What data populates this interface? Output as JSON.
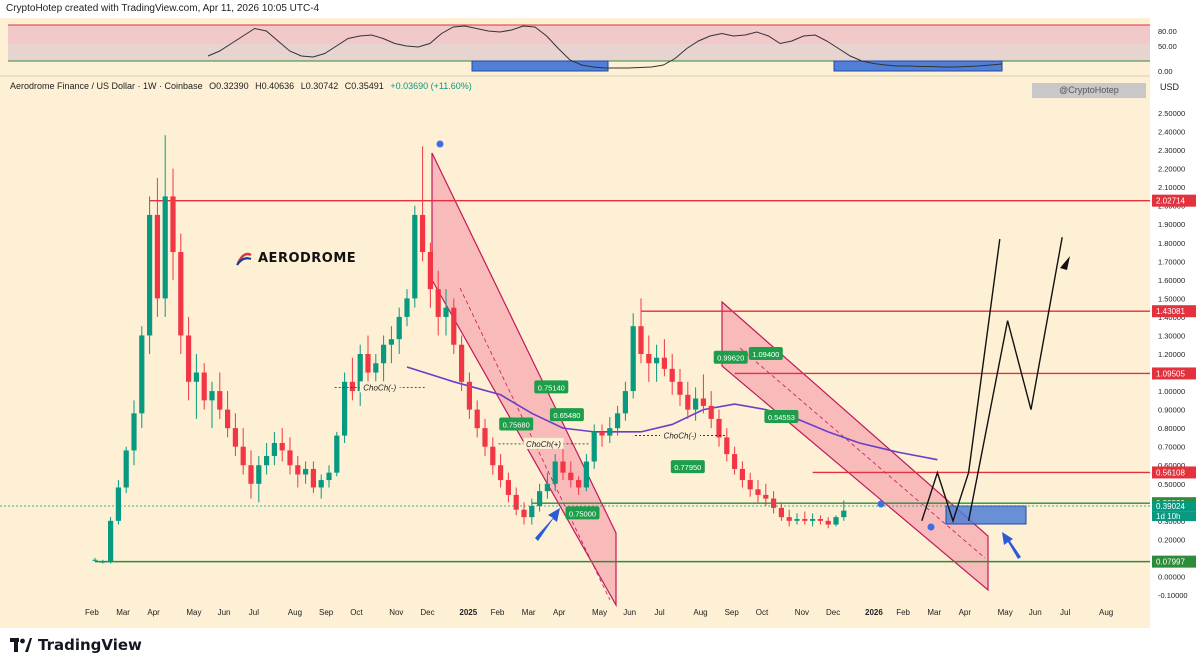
{
  "header": {
    "attribution": "CryptoHotep created with TradingView.com, Apr 11, 2026 10:05 UTC-4"
  },
  "legend": {
    "symbol": "Aerodrome Finance / US Dollar · 1W · Coinbase",
    "open": "O0.32390",
    "high": "H0.40636",
    "low": "L0.30742",
    "close": "C0.35491",
    "change": "+0.03690 (+11.60%)"
  },
  "watermark_tag": "@CryptoHotep",
  "currency": "USD",
  "brand_logo_text": "AERODROME",
  "footer_brand": "TradingView",
  "colors": {
    "up": "#089981",
    "down": "#f23645",
    "channel_fill": "#f7a8b0",
    "background": "#fdf0d5",
    "ma": "#6a3fc8",
    "resistance": "#e3313d",
    "support": "#2e8b3a",
    "zone": "#4f7fd6"
  },
  "chart_data": {
    "type": "candlestick",
    "timeframe": "1W",
    "ylim": [
      -0.15,
      2.6
    ],
    "y_ticks": [
      "2.50000",
      "2.40000",
      "2.30000",
      "2.20000",
      "2.10000",
      "2.00000",
      "1.90000",
      "1.80000",
      "1.70000",
      "1.60000",
      "1.50000",
      "1.40000",
      "1.30000",
      "1.20000",
      "1.10000",
      "1.00000",
      "0.90000",
      "0.80000",
      "0.70000",
      "0.60000",
      "0.50000",
      "0.40000",
      "0.30000",
      "0.20000",
      "0.10000",
      "0.00000",
      "-0.10000"
    ],
    "y_tick_values": [
      2.5,
      2.4,
      2.3,
      2.2,
      2.1,
      2.0,
      1.9,
      1.8,
      1.7,
      1.6,
      1.5,
      1.4,
      1.3,
      1.2,
      1.1,
      1.0,
      0.9,
      0.8,
      0.7,
      0.6,
      0.5,
      0.4,
      0.3,
      0.2,
      0.1,
      0.0,
      -0.1
    ],
    "x_ticks": [
      {
        "label": "Feb",
        "i": 0
      },
      {
        "label": "Mar",
        "i": 4
      },
      {
        "label": "Apr",
        "i": 8
      },
      {
        "label": "May",
        "i": 13
      },
      {
        "label": "Jun",
        "i": 17
      },
      {
        "label": "Jul",
        "i": 21
      },
      {
        "label": "Aug",
        "i": 26
      },
      {
        "label": "Sep",
        "i": 30
      },
      {
        "label": "Oct",
        "i": 34
      },
      {
        "label": "Nov",
        "i": 39
      },
      {
        "label": "Dec",
        "i": 43
      },
      {
        "label": "2025",
        "i": 48
      },
      {
        "label": "Feb",
        "i": 52
      },
      {
        "label": "Mar",
        "i": 56
      },
      {
        "label": "Apr",
        "i": 60
      },
      {
        "label": "May",
        "i": 65
      },
      {
        "label": "Jun",
        "i": 69
      },
      {
        "label": "Jul",
        "i": 73
      },
      {
        "label": "Aug",
        "i": 78
      },
      {
        "label": "Sep",
        "i": 82
      },
      {
        "label": "Oct",
        "i": 86
      },
      {
        "label": "Nov",
        "i": 91
      },
      {
        "label": "Dec",
        "i": 95
      },
      {
        "label": "2026",
        "i": 100
      },
      {
        "label": "Feb",
        "i": 104
      },
      {
        "label": "Mar",
        "i": 108
      },
      {
        "label": "Apr",
        "i": 112
      },
      {
        "label": "May",
        "i": 117
      },
      {
        "label": "Jun",
        "i": 121
      },
      {
        "label": "Jul",
        "i": 125
      },
      {
        "label": "Aug",
        "i": 130
      }
    ],
    "candles": [
      [
        0.09,
        0.1,
        0.08,
        0.09
      ],
      [
        0.08,
        0.09,
        0.07,
        0.08
      ],
      [
        0.08,
        0.32,
        0.07,
        0.3
      ],
      [
        0.3,
        0.52,
        0.28,
        0.48
      ],
      [
        0.48,
        0.7,
        0.45,
        0.68
      ],
      [
        0.68,
        0.95,
        0.6,
        0.88
      ],
      [
        0.88,
        1.35,
        0.8,
        1.3
      ],
      [
        1.3,
        2.05,
        1.2,
        1.95
      ],
      [
        1.95,
        2.15,
        1.4,
        1.5
      ],
      [
        1.5,
        2.38,
        1.4,
        2.05
      ],
      [
        2.05,
        2.2,
        1.6,
        1.75
      ],
      [
        1.75,
        1.85,
        1.2,
        1.3
      ],
      [
        1.3,
        1.4,
        0.95,
        1.05
      ],
      [
        1.05,
        1.2,
        0.85,
        1.1
      ],
      [
        1.1,
        1.15,
        0.9,
        0.95
      ],
      [
        0.95,
        1.05,
        0.8,
        1.0
      ],
      [
        1.0,
        1.1,
        0.85,
        0.9
      ],
      [
        0.9,
        1.0,
        0.75,
        0.8
      ],
      [
        0.8,
        0.88,
        0.65,
        0.7
      ],
      [
        0.7,
        0.8,
        0.55,
        0.6
      ],
      [
        0.6,
        0.68,
        0.42,
        0.5
      ],
      [
        0.5,
        0.65,
        0.4,
        0.6
      ],
      [
        0.6,
        0.72,
        0.55,
        0.65
      ],
      [
        0.65,
        0.78,
        0.6,
        0.72
      ],
      [
        0.72,
        0.8,
        0.62,
        0.68
      ],
      [
        0.68,
        0.75,
        0.55,
        0.6
      ],
      [
        0.6,
        0.65,
        0.48,
        0.55
      ],
      [
        0.55,
        0.62,
        0.5,
        0.58
      ],
      [
        0.58,
        0.62,
        0.45,
        0.48
      ],
      [
        0.48,
        0.55,
        0.42,
        0.52
      ],
      [
        0.52,
        0.6,
        0.48,
        0.56
      ],
      [
        0.56,
        0.78,
        0.54,
        0.76
      ],
      [
        0.76,
        1.1,
        0.72,
        1.05
      ],
      [
        1.05,
        1.18,
        0.95,
        1.0
      ],
      [
        1.0,
        1.25,
        0.92,
        1.2
      ],
      [
        1.2,
        1.3,
        1.05,
        1.1
      ],
      [
        1.1,
        1.2,
        1.0,
        1.15
      ],
      [
        1.15,
        1.3,
        1.05,
        1.25
      ],
      [
        1.25,
        1.35,
        1.15,
        1.28
      ],
      [
        1.28,
        1.45,
        1.2,
        1.4
      ],
      [
        1.4,
        1.55,
        1.35,
        1.5
      ],
      [
        1.5,
        2.0,
        1.45,
        1.95
      ],
      [
        1.95,
        2.32,
        1.7,
        1.75
      ],
      [
        1.75,
        1.8,
        1.45,
        1.55
      ],
      [
        1.55,
        1.65,
        1.3,
        1.4
      ],
      [
        1.4,
        1.55,
        1.3,
        1.45
      ],
      [
        1.45,
        1.5,
        1.2,
        1.25
      ],
      [
        1.25,
        1.3,
        1.0,
        1.05
      ],
      [
        1.05,
        1.1,
        0.85,
        0.9
      ],
      [
        0.9,
        0.95,
        0.75,
        0.8
      ],
      [
        0.8,
        0.85,
        0.65,
        0.7
      ],
      [
        0.7,
        0.75,
        0.55,
        0.6
      ],
      [
        0.6,
        0.66,
        0.48,
        0.52
      ],
      [
        0.52,
        0.56,
        0.4,
        0.44
      ],
      [
        0.44,
        0.48,
        0.33,
        0.36
      ],
      [
        0.36,
        0.4,
        0.28,
        0.32
      ],
      [
        0.32,
        0.42,
        0.28,
        0.38
      ],
      [
        0.38,
        0.5,
        0.35,
        0.46
      ],
      [
        0.46,
        0.56,
        0.42,
        0.5
      ],
      [
        0.5,
        0.66,
        0.46,
        0.62
      ],
      [
        0.62,
        0.7,
        0.52,
        0.56
      ],
      [
        0.56,
        0.62,
        0.48,
        0.52
      ],
      [
        0.52,
        0.54,
        0.44,
        0.48
      ],
      [
        0.48,
        0.66,
        0.46,
        0.62
      ],
      [
        0.62,
        0.82,
        0.58,
        0.78
      ],
      [
        0.78,
        0.82,
        0.7,
        0.76
      ],
      [
        0.76,
        0.86,
        0.72,
        0.8
      ],
      [
        0.8,
        0.92,
        0.76,
        0.88
      ],
      [
        0.88,
        1.05,
        0.84,
        1.0
      ],
      [
        1.0,
        1.42,
        0.96,
        1.35
      ],
      [
        1.35,
        1.5,
        1.15,
        1.2
      ],
      [
        1.2,
        1.3,
        1.05,
        1.15
      ],
      [
        1.15,
        1.25,
        1.05,
        1.18
      ],
      [
        1.18,
        1.28,
        1.08,
        1.12
      ],
      [
        1.12,
        1.2,
        0.98,
        1.05
      ],
      [
        1.05,
        1.12,
        0.92,
        0.98
      ],
      [
        0.98,
        1.05,
        0.85,
        0.9
      ],
      [
        0.9,
        1.02,
        0.84,
        0.96
      ],
      [
        0.96,
        1.09,
        0.88,
        0.92
      ],
      [
        0.92,
        1.0,
        0.8,
        0.85
      ],
      [
        0.85,
        0.9,
        0.7,
        0.75
      ],
      [
        0.75,
        0.8,
        0.62,
        0.66
      ],
      [
        0.66,
        0.7,
        0.55,
        0.58
      ],
      [
        0.58,
        0.62,
        0.48,
        0.52
      ],
      [
        0.52,
        0.56,
        0.43,
        0.47
      ],
      [
        0.47,
        0.52,
        0.4,
        0.44
      ],
      [
        0.44,
        0.5,
        0.38,
        0.42
      ],
      [
        0.42,
        0.46,
        0.34,
        0.37
      ],
      [
        0.37,
        0.4,
        0.3,
        0.32
      ],
      [
        0.32,
        0.36,
        0.27,
        0.3
      ],
      [
        0.3,
        0.34,
        0.28,
        0.31
      ],
      [
        0.31,
        0.35,
        0.28,
        0.3
      ],
      [
        0.3,
        0.34,
        0.27,
        0.31
      ],
      [
        0.31,
        0.33,
        0.28,
        0.3
      ],
      [
        0.3,
        0.32,
        0.26,
        0.28
      ],
      [
        0.28,
        0.33,
        0.27,
        0.32
      ],
      [
        0.32,
        0.41,
        0.3,
        0.355
      ]
    ],
    "ma_points": [
      [
        40,
        1.13
      ],
      [
        46,
        1.05
      ],
      [
        52,
        0.98
      ],
      [
        56,
        0.88
      ],
      [
        60,
        0.8
      ],
      [
        64,
        0.78
      ],
      [
        70,
        0.78
      ],
      [
        74,
        0.82
      ],
      [
        78,
        0.9
      ],
      [
        82,
        0.93
      ],
      [
        86,
        0.9
      ],
      [
        90,
        0.85
      ],
      [
        94,
        0.78
      ],
      [
        98,
        0.72
      ],
      [
        103,
        0.67
      ],
      [
        108,
        0.63
      ]
    ],
    "horizontal_levels": [
      {
        "value": 2.02714,
        "label": "2.02714",
        "color": "#e3313d",
        "from_i": 7
      },
      {
        "value": 1.43081,
        "label": "1.43081",
        "color": "#e3313d",
        "from_i": 70
      },
      {
        "value": 1.09505,
        "label": "1.09505",
        "color": "#e3313d",
        "from_i": 82
      },
      {
        "value": 0.56108,
        "label": "0.56108",
        "color": "#e3313d",
        "from_i": 92
      },
      {
        "value": 0.39529,
        "label": "0.39529",
        "color": "#2e8b3a",
        "from_i": 56
      },
      {
        "value": 0.07997,
        "label": "0.07997",
        "color": "#2e8b3a",
        "from_i": 0
      }
    ],
    "price_labels": [
      {
        "value": 0.39024,
        "label": "0.39024",
        "color": "#089981"
      },
      {
        "value": 0.355,
        "label": "1d 10h",
        "color": "#089981"
      }
    ],
    "level_annotations": [
      {
        "label": "0.75680",
        "i": 54,
        "value": 0.82
      },
      {
        "label": "0.75140",
        "i": 58.5,
        "value": 1.02
      },
      {
        "label": "0.65480",
        "i": 60.5,
        "value": 0.87
      },
      {
        "label": "0.75000",
        "i": 62.5,
        "value": 0.34
      },
      {
        "label": "0.77950",
        "i": 76,
        "value": 0.59
      },
      {
        "label": "0.99620",
        "i": 81.5,
        "value": 1.18
      },
      {
        "label": "1.09400",
        "i": 86,
        "value": 1.2
      },
      {
        "label": "0.54553",
        "i": 88,
        "value": 0.86
      }
    ],
    "choch_labels": [
      {
        "label": "ChoCh(-)",
        "i": 36.5,
        "value": 1.02
      },
      {
        "label": "ChoCh(+)",
        "i": 57.5,
        "value": 0.715
      },
      {
        "label": "ChoCh(-)",
        "i": 75,
        "value": 0.76
      }
    ],
    "rsi": {
      "ticks": [
        "80.00",
        "50.00",
        "0.00"
      ],
      "tick_values": [
        80,
        50,
        0
      ],
      "upper": 70,
      "lower": 30,
      "values": [
        30,
        40,
        55,
        70,
        85,
        80,
        60,
        40,
        30,
        28,
        35,
        50,
        65,
        70,
        72,
        65,
        55,
        50,
        48,
        55,
        75,
        88,
        90,
        85,
        80,
        78,
        82,
        90,
        88,
        70,
        45,
        22,
        12,
        8,
        6,
        6,
        6,
        7,
        8,
        12,
        25,
        45,
        60,
        70,
        75,
        70,
        72,
        78,
        70,
        55,
        60,
        70,
        72,
        60,
        45,
        30,
        20,
        15,
        12,
        10,
        10,
        9,
        9,
        8,
        8,
        9,
        10,
        12,
        14
      ]
    },
    "forecast_path": [
      [
        106,
        0.3
      ],
      [
        108,
        0.56
      ],
      [
        110,
        0.3
      ],
      [
        112,
        0.56
      ],
      [
        116,
        1.82
      ]
    ],
    "forecast_zigzag": [
      [
        112,
        0.3
      ],
      [
        117,
        1.38
      ],
      [
        120,
        0.9
      ],
      [
        124,
        1.83
      ]
    ]
  }
}
